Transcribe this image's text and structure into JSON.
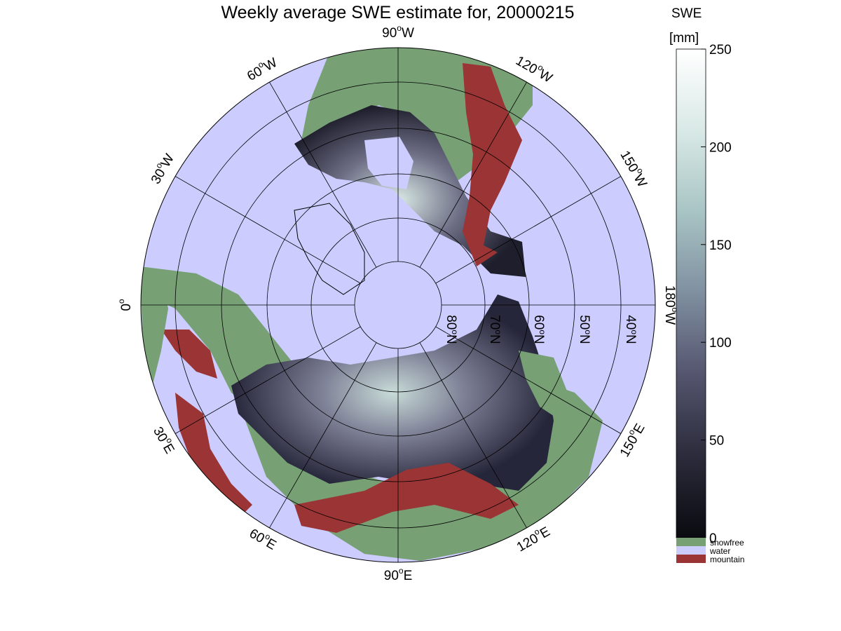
{
  "title": "Weekly average SWE estimate for, 20000215",
  "colorbar": {
    "title_line1": "SWE",
    "title_line2": "[mm]",
    "min": 0,
    "max": 250,
    "ticks": [
      "0",
      "50",
      "100",
      "150",
      "200",
      "250"
    ],
    "gradient_colors": [
      "#0a0a10",
      "#2b2b3b",
      "#54546e",
      "#7f8fa0",
      "#a8c4c4",
      "#d9e9e6",
      "#ffffff"
    ]
  },
  "legend": [
    {
      "label": "snowfree",
      "color": "#77a075"
    },
    {
      "label": "water",
      "color": "#ccccff"
    },
    {
      "label": "mountain",
      "color": "#9b3434"
    }
  ],
  "longitude_labels": [
    {
      "deg": "90",
      "hemi": "W",
      "side": "top"
    },
    {
      "deg": "120",
      "hemi": "W"
    },
    {
      "deg": "150",
      "hemi": "W"
    },
    {
      "deg": "180",
      "hemi": "W"
    },
    {
      "deg": "150",
      "hemi": "E"
    },
    {
      "deg": "120",
      "hemi": "E"
    },
    {
      "deg": "90",
      "hemi": "E"
    },
    {
      "deg": "60",
      "hemi": "E"
    },
    {
      "deg": "30",
      "hemi": "E"
    },
    {
      "deg": "0",
      "hemi": ""
    },
    {
      "deg": "30",
      "hemi": "W"
    },
    {
      "deg": "60",
      "hemi": "W"
    }
  ],
  "latitude_labels": [
    {
      "deg": "80",
      "hemi": "N"
    },
    {
      "deg": "70",
      "hemi": "N"
    },
    {
      "deg": "60",
      "hemi": "N"
    },
    {
      "deg": "50",
      "hemi": "N"
    },
    {
      "deg": "40",
      "hemi": "N"
    }
  ],
  "map_colors": {
    "water": "#ccccff",
    "snowfree": "#77a075",
    "mountain": "#9b3434",
    "snow_low": "#1a1a24",
    "snow_mid": "#5a5a72",
    "snow_high": "#c8dcd8"
  }
}
